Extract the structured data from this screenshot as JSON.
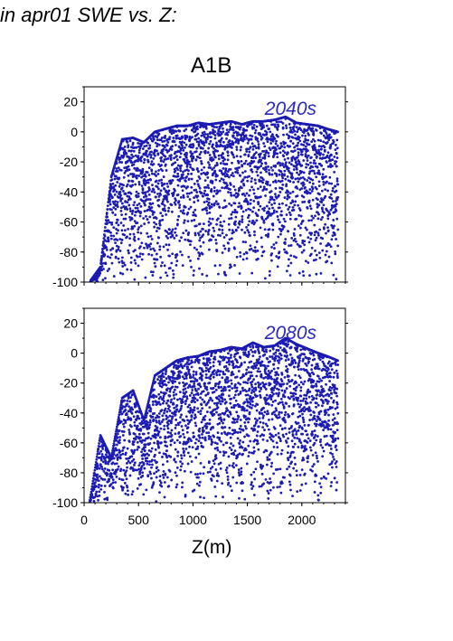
{
  "header_title": "in apr01 SWE vs. Z:",
  "scenario_title": "A1B",
  "xlabel": "Z(m)",
  "colors": {
    "points": "#1c1cb4",
    "panel_label": "#2a2abf",
    "axes": "#000000"
  },
  "chart_data": [
    {
      "type": "scatter",
      "panel_label": "2040s",
      "xlim": [
        0,
        2400
      ],
      "ylim": [
        -100,
        30
      ],
      "yticks": [
        20,
        0,
        -20,
        -40,
        -60,
        -80,
        -100
      ],
      "xticks": [],
      "grid": false,
      "series": [
        {
          "envelope": {
            "x": [
              50,
              150,
              250,
              350,
              450,
              550,
              650,
              750,
              850,
              950,
              1050,
              1150,
              1250,
              1350,
              1450,
              1550,
              1650,
              1750,
              1850,
              1950,
              2050,
              2150,
              2230,
              2330
            ],
            "y_top": [
              -100,
              -90,
              -30,
              -5,
              -4,
              -7,
              0,
              2,
              4,
              4,
              6,
              5,
              6,
              7,
              5,
              7,
              7,
              8,
              10,
              6,
              5,
              4,
              2,
              0
            ]
          }
        }
      ]
    },
    {
      "type": "scatter",
      "panel_label": "2080s",
      "xlim": [
        0,
        2400
      ],
      "ylim": [
        -100,
        30
      ],
      "yticks": [
        20,
        0,
        -20,
        -40,
        -60,
        -80,
        -100
      ],
      "xticks": [
        0,
        500,
        1000,
        1500,
        2000
      ],
      "grid": false,
      "series": [
        {
          "envelope": {
            "x": [
              50,
              150,
              250,
              350,
              450,
              550,
              650,
              750,
              850,
              950,
              1050,
              1150,
              1250,
              1350,
              1450,
              1550,
              1650,
              1750,
              1850,
              1950,
              2050,
              2150,
              2230,
              2330
            ],
            "y_top": [
              -100,
              -55,
              -70,
              -30,
              -25,
              -45,
              -15,
              -10,
              -5,
              -3,
              -2,
              1,
              2,
              4,
              3,
              7,
              4,
              5,
              10,
              6,
              3,
              0,
              -2,
              -5
            ]
          }
        }
      ]
    }
  ]
}
